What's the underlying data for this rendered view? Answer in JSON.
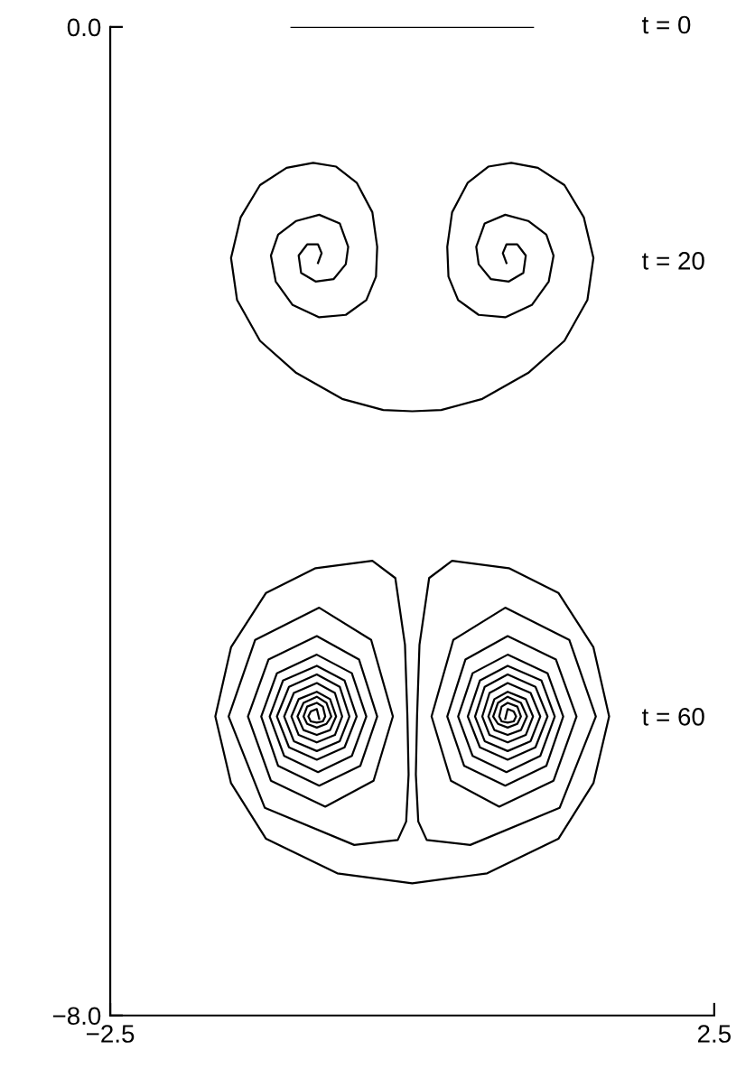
{
  "chart_data": {
    "type": "line",
    "xlim": [
      -2.5,
      2.5
    ],
    "ylim": [
      -8,
      0
    ],
    "xticks": [
      {
        "value": -2.5,
        "label": "−2.5"
      },
      2.5
    ],
    "yticks": [
      {
        "value": -8,
        "label": "−8.0"
      },
      {
        "value": 0,
        "label": "0.0"
      }
    ],
    "grid": false,
    "legend": false,
    "marker": "none",
    "line_style": "solid",
    "series": [
      {
        "name": "t = 0",
        "color": "#000000",
        "x": [
          -1.0,
          1.0
        ],
        "values": [
          0.0,
          0.0
        ]
      },
      {
        "name": "t = 20",
        "color": "#000000",
        "x": [
          -0.78,
          -0.75,
          -0.78,
          -0.87,
          -0.94,
          -0.92,
          -0.8,
          -0.65,
          -0.55,
          -0.53,
          -0.6,
          -0.77,
          -0.96,
          -1.11,
          -1.17,
          -1.13,
          -0.99,
          -0.77,
          -0.55,
          -0.38,
          -0.3,
          -0.29,
          -0.33,
          -0.46,
          -0.63,
          -0.82,
          -1.04,
          -1.26,
          -1.42,
          -1.5,
          -1.45,
          -1.26,
          -0.96,
          -0.58,
          -0.24,
          0.0,
          0.24,
          0.58,
          0.96,
          1.26,
          1.45,
          1.5,
          1.42,
          1.26,
          1.04,
          0.82,
          0.63,
          0.46,
          0.33,
          0.29,
          0.3,
          0.38,
          0.55,
          0.77,
          0.99,
          1.13,
          1.17,
          1.11,
          0.96,
          0.77,
          0.6,
          0.53,
          0.55,
          0.65,
          0.8,
          0.92,
          0.94,
          0.87,
          0.78,
          0.75,
          0.78
        ],
        "values": [
          -1.91,
          -1.83,
          -1.76,
          -1.76,
          -1.85,
          -1.99,
          -2.06,
          -2.04,
          -1.92,
          -1.78,
          -1.59,
          -1.52,
          -1.57,
          -1.68,
          -1.85,
          -2.06,
          -2.25,
          -2.35,
          -2.33,
          -2.21,
          -2.02,
          -1.78,
          -1.5,
          -1.26,
          -1.13,
          -1.1,
          -1.14,
          -1.28,
          -1.54,
          -1.87,
          -2.21,
          -2.54,
          -2.8,
          -3.01,
          -3.1,
          -3.11,
          -3.1,
          -3.01,
          -2.8,
          -2.54,
          -2.21,
          -1.87,
          -1.54,
          -1.28,
          -1.14,
          -1.1,
          -1.13,
          -1.26,
          -1.5,
          -1.78,
          -2.02,
          -2.21,
          -2.33,
          -2.35,
          -2.25,
          -2.06,
          -1.85,
          -1.68,
          -1.57,
          -1.52,
          -1.59,
          -1.78,
          -1.92,
          -2.04,
          -2.06,
          -1.99,
          -1.85,
          -1.76,
          -1.76,
          -1.83,
          -1.91
        ]
      },
      {
        "name": "t = 60",
        "color": "#000000",
        "x": [
          -0.77,
          -0.79,
          -0.84,
          -0.86,
          -0.84,
          -0.79,
          -0.74,
          -0.72,
          -0.74,
          -0.79,
          -0.87,
          -0.9,
          -0.87,
          -0.79,
          -0.71,
          -0.67,
          -0.71,
          -0.79,
          -0.9,
          -0.95,
          -0.9,
          -0.79,
          -0.68,
          -0.63,
          -0.68,
          -0.79,
          -0.94,
          -1.0,
          -0.94,
          -0.79,
          -0.64,
          -0.58,
          -0.64,
          -0.79,
          -0.98,
          -1.06,
          -0.98,
          -0.79,
          -0.6,
          -0.52,
          -0.6,
          -0.79,
          -1.02,
          -1.12,
          -1.02,
          -0.79,
          -0.56,
          -0.46,
          -0.56,
          -0.79,
          -1.07,
          -1.18,
          -1.06,
          -0.78,
          -0.5,
          -0.38,
          -0.5,
          -0.79,
          -1.12,
          -1.25,
          -1.11,
          -0.77,
          -0.43,
          -0.29,
          -0.44,
          -0.79,
          -1.19,
          -1.36,
          -1.17,
          -0.72,
          -0.32,
          -0.16,
          -0.34,
          -0.77,
          -1.3,
          -1.52,
          -1.22,
          -0.48,
          -0.12,
          -0.05,
          -0.03,
          -0.04,
          -0.06,
          -0.14,
          -0.33,
          -0.8,
          -1.21,
          -1.5,
          -1.63,
          -1.5,
          -1.21,
          -0.62,
          0.0,
          0.62,
          1.21,
          1.5,
          1.63,
          1.5,
          1.21,
          0.8,
          0.33,
          0.14,
          0.06,
          0.04,
          0.03,
          0.05,
          0.12,
          0.48,
          1.22,
          1.52,
          1.3,
          0.77,
          0.34,
          0.16,
          0.32,
          0.72,
          1.17,
          1.36,
          1.19,
          0.79,
          0.44,
          0.29,
          0.43,
          0.77,
          1.11,
          1.25,
          1.12,
          0.79,
          0.5,
          0.38,
          0.5,
          0.78,
          1.06,
          1.18,
          1.07,
          0.79,
          0.56,
          0.46,
          0.56,
          0.79,
          1.02,
          1.12,
          1.02,
          0.79,
          0.6,
          0.52,
          0.6,
          0.79,
          0.98,
          1.06,
          0.98,
          0.79,
          0.64,
          0.58,
          0.64,
          0.79,
          0.94,
          1.0,
          0.94,
          0.79,
          0.68,
          0.63,
          0.68,
          0.79,
          0.9,
          0.95,
          0.9,
          0.79,
          0.71,
          0.67,
          0.71,
          0.79,
          0.87,
          0.9,
          0.87,
          0.79,
          0.74,
          0.72,
          0.74,
          0.79,
          0.84,
          0.86,
          0.84,
          0.79,
          0.77
        ],
        "values": [
          -5.6,
          -5.52,
          -5.54,
          -5.58,
          -5.62,
          -5.63,
          -5.62,
          -5.58,
          -5.5,
          -5.47,
          -5.5,
          -5.58,
          -5.64,
          -5.67,
          -5.64,
          -5.58,
          -5.47,
          -5.42,
          -5.47,
          -5.58,
          -5.69,
          -5.73,
          -5.69,
          -5.58,
          -5.44,
          -5.38,
          -5.44,
          -5.58,
          -5.73,
          -5.79,
          -5.73,
          -5.58,
          -5.39,
          -5.31,
          -5.39,
          -5.58,
          -5.78,
          -5.86,
          -5.78,
          -5.58,
          -5.34,
          -5.24,
          -5.34,
          -5.58,
          -5.83,
          -5.93,
          -5.83,
          -5.58,
          -5.29,
          -5.17,
          -5.29,
          -5.58,
          -5.9,
          -6.03,
          -5.9,
          -5.58,
          -5.23,
          -5.08,
          -5.23,
          -5.58,
          -5.98,
          -6.14,
          -5.98,
          -5.58,
          -5.12,
          -4.93,
          -5.12,
          -5.58,
          -6.1,
          -6.31,
          -6.1,
          -5.58,
          -4.96,
          -4.7,
          -4.96,
          -5.58,
          -6.32,
          -6.62,
          -6.58,
          -6.43,
          -6.05,
          -5.58,
          -5.0,
          -4.46,
          -4.32,
          -4.38,
          -4.58,
          -5.02,
          -5.58,
          -6.12,
          -6.57,
          -6.85,
          -6.93,
          -6.85,
          -6.57,
          -6.12,
          -5.58,
          -5.02,
          -4.58,
          -4.38,
          -4.32,
          -4.46,
          -5.0,
          -5.58,
          -6.05,
          -6.43,
          -6.58,
          -6.62,
          -6.32,
          -5.58,
          -4.96,
          -4.7,
          -4.96,
          -5.58,
          -6.1,
          -6.31,
          -6.1,
          -5.58,
          -5.12,
          -4.93,
          -5.12,
          -5.58,
          -5.98,
          -6.14,
          -5.98,
          -5.58,
          -5.23,
          -5.08,
          -5.23,
          -5.58,
          -5.9,
          -6.03,
          -5.9,
          -5.58,
          -5.29,
          -5.17,
          -5.29,
          -5.58,
          -5.83,
          -5.93,
          -5.83,
          -5.58,
          -5.34,
          -5.24,
          -5.34,
          -5.58,
          -5.78,
          -5.86,
          -5.78,
          -5.58,
          -5.39,
          -5.31,
          -5.39,
          -5.58,
          -5.73,
          -5.79,
          -5.73,
          -5.58,
          -5.44,
          -5.38,
          -5.44,
          -5.58,
          -5.69,
          -5.73,
          -5.69,
          -5.58,
          -5.47,
          -5.42,
          -5.47,
          -5.58,
          -5.64,
          -5.67,
          -5.64,
          -5.58,
          -5.5,
          -5.47,
          -5.5,
          -5.58,
          -5.62,
          -5.63,
          -5.62,
          -5.58,
          -5.54,
          -5.52,
          -5.6
        ]
      }
    ]
  }
}
